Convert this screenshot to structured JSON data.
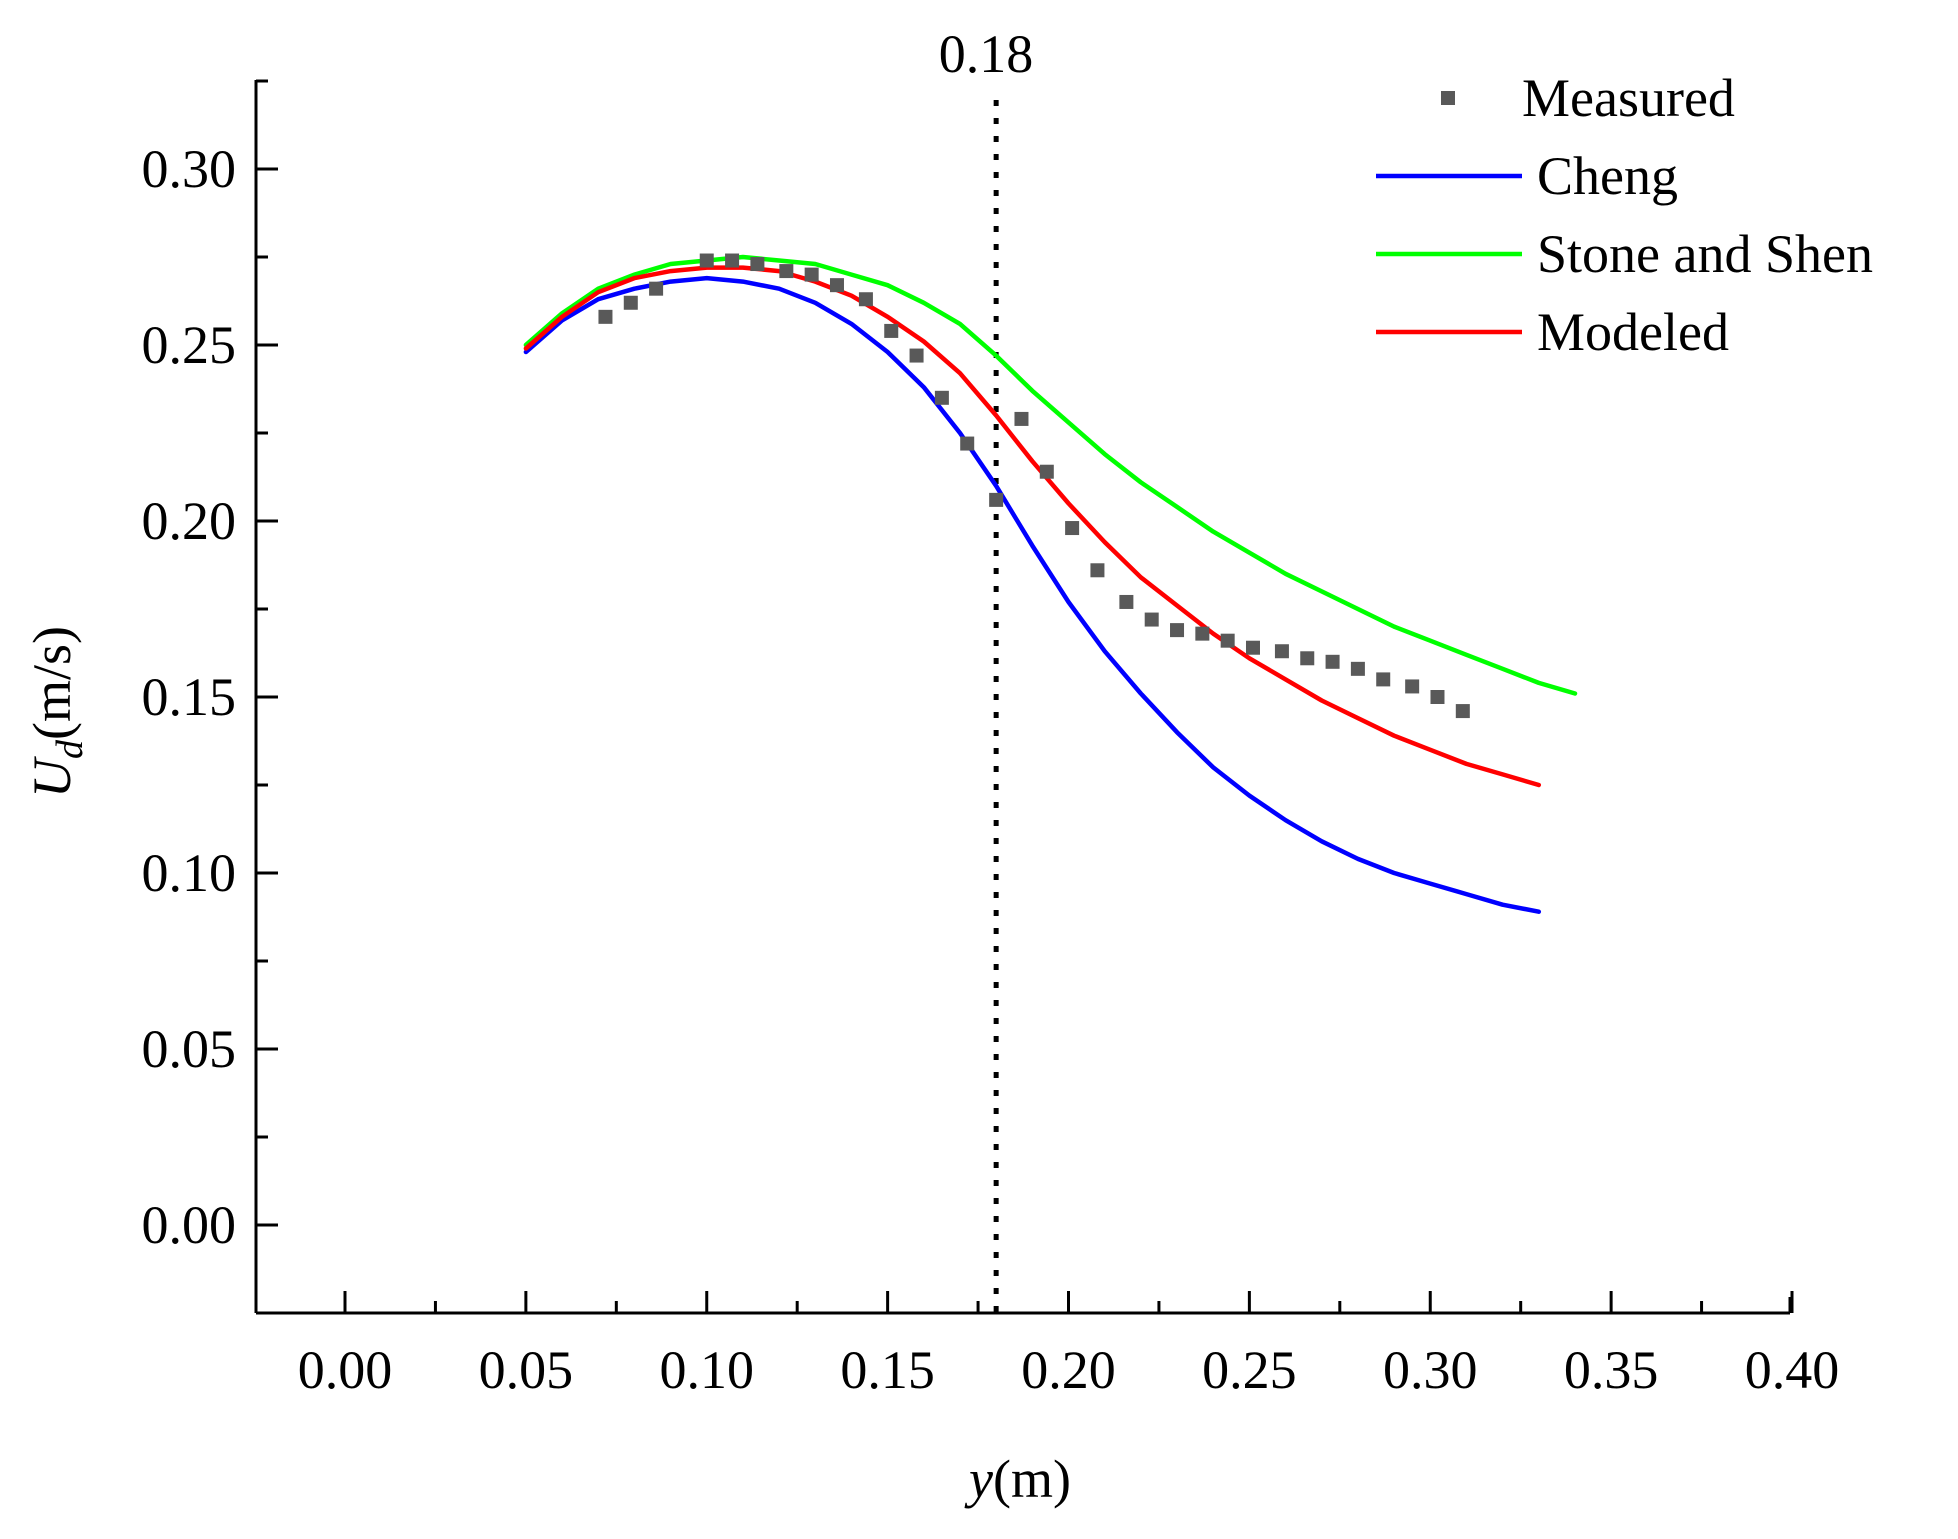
{
  "chart_data": {
    "type": "line",
    "title": "",
    "xlabel_var": "y",
    "xlabel_unit": "(m)",
    "ylabel_var": "U",
    "ylabel_sub": "d",
    "ylabel_unit": "(m/s)",
    "xlim": [
      -0.025,
      0.4025
    ],
    "ylim": [
      -0.025,
      0.325
    ],
    "xticks": [
      0.0,
      0.05,
      0.1,
      0.15,
      0.2,
      0.25,
      0.3,
      0.35,
      0.4
    ],
    "xtick_labels": [
      "0.00",
      "0.05",
      "0.10",
      "0.15",
      "0.20",
      "0.25",
      "0.30",
      "0.35",
      "0.40"
    ],
    "yticks": [
      0.0,
      0.05,
      0.1,
      0.15,
      0.2,
      0.25,
      0.3
    ],
    "ytick_labels": [
      "0.00",
      "0.05",
      "0.10",
      "0.15",
      "0.20",
      "0.25",
      "0.30"
    ],
    "grid": false,
    "legend_position": "top-right",
    "vline": {
      "x": 0.18,
      "label": "0.18",
      "style": "dotted"
    },
    "series": [
      {
        "name": "Measured",
        "kind": "scatter",
        "color": "#595959",
        "x": [
          0.072,
          0.079,
          0.086,
          0.1,
          0.107,
          0.114,
          0.122,
          0.129,
          0.136,
          0.144,
          0.151,
          0.158,
          0.165,
          0.172,
          0.18,
          0.187,
          0.194,
          0.201,
          0.208,
          0.216,
          0.223,
          0.23,
          0.237,
          0.244,
          0.251,
          0.259,
          0.266,
          0.273,
          0.28,
          0.287,
          0.295,
          0.302,
          0.309
        ],
        "y": [
          0.258,
          0.262,
          0.266,
          0.274,
          0.274,
          0.273,
          0.271,
          0.27,
          0.267,
          0.263,
          0.254,
          0.247,
          0.235,
          0.222,
          0.206,
          0.229,
          0.214,
          0.198,
          0.186,
          0.177,
          0.172,
          0.169,
          0.168,
          0.166,
          0.164,
          0.163,
          0.161,
          0.16,
          0.158,
          0.155,
          0.153,
          0.15,
          0.146
        ]
      },
      {
        "name": "Cheng",
        "kind": "line",
        "color": "#0000ff",
        "x": [
          0.05,
          0.06,
          0.07,
          0.08,
          0.09,
          0.1,
          0.11,
          0.12,
          0.13,
          0.14,
          0.15,
          0.16,
          0.17,
          0.18,
          0.19,
          0.2,
          0.21,
          0.22,
          0.23,
          0.24,
          0.25,
          0.26,
          0.27,
          0.28,
          0.29,
          0.3,
          0.31,
          0.32,
          0.33
        ],
        "y": [
          0.248,
          0.257,
          0.263,
          0.266,
          0.268,
          0.269,
          0.268,
          0.266,
          0.262,
          0.256,
          0.248,
          0.238,
          0.225,
          0.21,
          0.193,
          0.177,
          0.163,
          0.151,
          0.14,
          0.13,
          0.122,
          0.115,
          0.109,
          0.104,
          0.1,
          0.097,
          0.094,
          0.091,
          0.089
        ]
      },
      {
        "name": "Stone and Shen",
        "kind": "line",
        "color": "#00ff00",
        "x": [
          0.05,
          0.06,
          0.07,
          0.08,
          0.09,
          0.1,
          0.11,
          0.12,
          0.13,
          0.14,
          0.15,
          0.16,
          0.17,
          0.18,
          0.19,
          0.2,
          0.21,
          0.22,
          0.23,
          0.24,
          0.25,
          0.26,
          0.27,
          0.28,
          0.29,
          0.3,
          0.31,
          0.32,
          0.33,
          0.34
        ],
        "y": [
          0.25,
          0.259,
          0.266,
          0.27,
          0.273,
          0.274,
          0.275,
          0.274,
          0.273,
          0.27,
          0.267,
          0.262,
          0.256,
          0.247,
          0.237,
          0.228,
          0.219,
          0.211,
          0.204,
          0.197,
          0.191,
          0.185,
          0.18,
          0.175,
          0.17,
          0.166,
          0.162,
          0.158,
          0.154,
          0.151
        ]
      },
      {
        "name": "Modeled",
        "kind": "line",
        "color": "#ff0000",
        "x": [
          0.05,
          0.06,
          0.07,
          0.08,
          0.09,
          0.1,
          0.11,
          0.12,
          0.13,
          0.14,
          0.15,
          0.16,
          0.17,
          0.18,
          0.19,
          0.2,
          0.21,
          0.22,
          0.23,
          0.24,
          0.25,
          0.26,
          0.27,
          0.28,
          0.29,
          0.3,
          0.31,
          0.32,
          0.33
        ],
        "y": [
          0.249,
          0.258,
          0.265,
          0.269,
          0.271,
          0.272,
          0.272,
          0.271,
          0.268,
          0.264,
          0.258,
          0.251,
          0.242,
          0.23,
          0.217,
          0.205,
          0.194,
          0.184,
          0.176,
          0.168,
          0.161,
          0.155,
          0.149,
          0.144,
          0.139,
          0.135,
          0.131,
          0.128,
          0.125
        ]
      }
    ]
  }
}
